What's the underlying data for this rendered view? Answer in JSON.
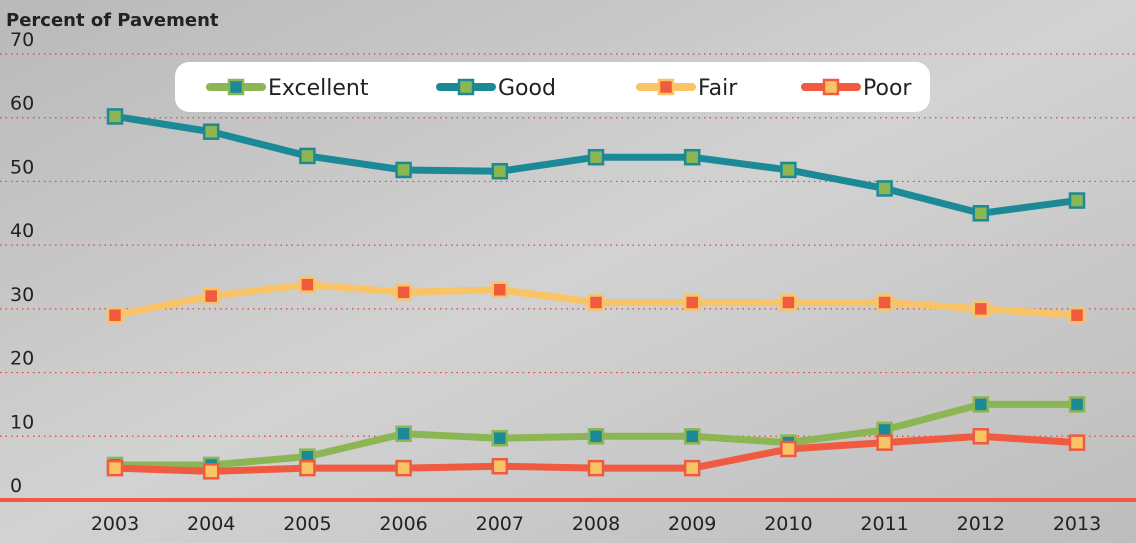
{
  "chart_data": {
    "type": "line",
    "title": "Percent of Pavement",
    "categories": [
      "2003",
      "2004",
      "2005",
      "2006",
      "2007",
      "2008",
      "2009",
      "2010",
      "2011",
      "2012",
      "2013"
    ],
    "series": [
      {
        "name": "Excellent",
        "color": "#8cb553",
        "marker_color": "#1b8a96",
        "values": [
          5.5,
          5.5,
          6.8,
          10.4,
          9.7,
          10,
          10,
          9,
          11,
          15,
          15
        ]
      },
      {
        "name": "Good",
        "color": "#1b8a96",
        "marker_color": "#8cb553",
        "values": [
          60.2,
          57.8,
          54,
          51.8,
          51.6,
          53.8,
          53.8,
          51.8,
          48.9,
          45,
          47
        ]
      },
      {
        "name": "Fair",
        "color": "#f9c466",
        "marker_color": "#f05a3e",
        "values": [
          29,
          32,
          33.8,
          32.6,
          33,
          31,
          31,
          31,
          31,
          30,
          29
        ]
      },
      {
        "name": "Poor",
        "color": "#ef5a40",
        "marker_color": "#f9c466",
        "values": [
          5,
          4.5,
          5,
          5,
          5.3,
          5,
          5,
          8,
          9,
          10,
          9
        ]
      }
    ],
    "ylim": [
      0,
      70
    ],
    "yticks": [
      0,
      10,
      20,
      30,
      40,
      50,
      60,
      70
    ],
    "grid": true,
    "legend": "top"
  }
}
